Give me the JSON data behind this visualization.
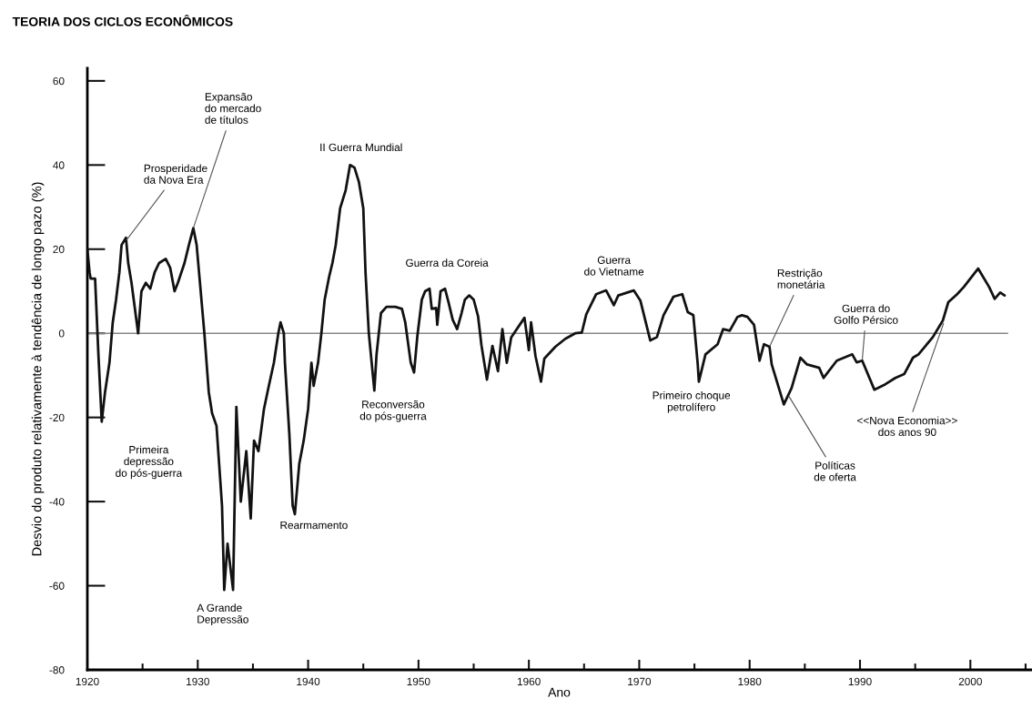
{
  "chart_data": {
    "type": "line",
    "title": "TEORIA DOS CICLOS ECONÔMICOS",
    "xlabel": "Ano",
    "ylabel": "Desvio do produto relativamente à tendência de longo pazo (%)",
    "series": [
      {
        "color": "#111111",
        "x": [
          1920.0,
          1920.2,
          1920.3,
          1920.7,
          1921.0,
          1921.3,
          1921.6,
          1922.0,
          1922.3,
          1922.6,
          1922.9,
          1923.1,
          1923.5,
          1923.7,
          1924.0,
          1924.6,
          1924.9,
          1925.3,
          1925.7,
          1926.1,
          1926.5,
          1927.1,
          1927.5,
          1927.9,
          1928.2,
          1928.8,
          1929.2,
          1929.6,
          1929.9,
          1930.2,
          1930.6,
          1931.0,
          1931.3,
          1931.7,
          1932.2,
          1932.4,
          1932.7,
          1933.2,
          1933.5,
          1933.9,
          1934.4,
          1934.8,
          1935.1,
          1935.5,
          1936.0,
          1936.4,
          1936.9,
          1937.3,
          1937.5,
          1937.8,
          1937.9,
          1938.3,
          1938.6,
          1938.8,
          1939.2,
          1939.6,
          1940.0,
          1940.3,
          1940.5,
          1940.9,
          1941.2,
          1941.5,
          1941.9,
          1942.2,
          1942.5,
          1942.9,
          1943.4,
          1943.8,
          1944.2,
          1944.6,
          1945.0,
          1945.2,
          1945.5,
          1946.0,
          1946.2,
          1946.6,
          1947.1,
          1947.9,
          1948.5,
          1948.8,
          1949.3,
          1949.6,
          1949.9,
          1950.3,
          1950.6,
          1951.0,
          1951.2,
          1951.6,
          1951.7,
          1952.0,
          1952.4,
          1952.7,
          1953.1,
          1953.5,
          1953.9,
          1954.2,
          1954.6,
          1955.0,
          1955.4,
          1955.7,
          1956.2,
          1956.7,
          1957.2,
          1957.6,
          1958.0,
          1958.4,
          1959.6,
          1960.0,
          1960.2,
          1960.6,
          1961.1,
          1961.4,
          1962.4,
          1963.3,
          1964.2,
          1964.8,
          1965.2,
          1966.1,
          1967.0,
          1967.7,
          1968.1,
          1969.5,
          1970.1,
          1971.0,
          1971.6,
          1972.2,
          1973.1,
          1973.9,
          1974.4,
          1974.9,
          1975.3,
          1975.4,
          1976.0,
          1977.1,
          1977.6,
          1978.2,
          1978.9,
          1979.3,
          1979.8,
          1980.4,
          1980.9,
          1981.3,
          1981.8,
          1982.0,
          1983.1,
          1983.8,
          1984.6,
          1985.2,
          1986.3,
          1986.7,
          1987.9,
          1989.3,
          1989.7,
          1990.2,
          1991.3,
          1992.3,
          1993.2,
          1994.0,
          1994.8,
          1995.3,
          1996.6,
          1997.5,
          1998.0,
          1998.8,
          1999.4,
          2000.7,
          2001.7,
          2002.2,
          2002.7,
          2003.1
        ],
        "values": [
          20,
          14.5,
          13,
          13,
          -5,
          -21,
          -14,
          -7,
          2.6,
          8,
          14.5,
          21,
          22.7,
          16.7,
          12,
          0,
          10,
          12,
          10.6,
          14.5,
          16.7,
          17.7,
          15.6,
          10,
          12,
          16.7,
          21,
          25,
          21,
          12,
          0,
          -14,
          -19,
          -22,
          -41,
          -61,
          -50,
          -61,
          -17.5,
          -40,
          -28,
          -44,
          -25.5,
          -28,
          -18,
          -13,
          -7,
          0,
          2.6,
          0,
          -7,
          -24,
          -41,
          -43,
          -31,
          -25.5,
          -18,
          -7,
          -12.5,
          -7,
          0,
          8,
          13.4,
          16.7,
          21,
          29.7,
          34,
          40,
          39.4,
          36,
          29.7,
          14.5,
          0,
          -13.6,
          -5,
          4.8,
          6.3,
          6.3,
          5.8,
          2.6,
          -7,
          -9.3,
          -0.6,
          8,
          10,
          10.6,
          5.8,
          6,
          2,
          10,
          10.6,
          7.6,
          3.2,
          1,
          4.8,
          8,
          9,
          8,
          4,
          -2.8,
          -11,
          -3,
          -9,
          1,
          -7,
          -1,
          3.7,
          -4,
          2.6,
          -5.4,
          -11.5,
          -6,
          -3.2,
          -1.3,
          0,
          0.2,
          4.5,
          9.3,
          10.2,
          6.7,
          9,
          10.2,
          7.8,
          -1.7,
          -0.9,
          4.3,
          8.7,
          9.3,
          5,
          4.3,
          -7.4,
          -11.5,
          -5,
          -2.6,
          1,
          0.6,
          3.9,
          4.3,
          3.9,
          2,
          -6.5,
          -2.6,
          -3.2,
          -7.4,
          -16.9,
          -13,
          -5.8,
          -7.4,
          -8.2,
          -10.6,
          -6.5,
          -5,
          -6.9,
          -6.5,
          -13.4,
          -12.1,
          -10.6,
          -9.7,
          -5.8,
          -5,
          -0.9,
          3,
          7.4,
          9.3,
          11,
          15.4,
          11,
          8.2,
          9.7,
          9
        ]
      }
    ],
    "xlim": [
      1920,
      2005.5
    ],
    "ylim": [
      -80,
      63
    ],
    "xticks": [
      1920,
      {
        "value": 1925,
        "label": null
      },
      1930,
      {
        "value": 1935,
        "label": null
      },
      1940,
      {
        "value": 1945,
        "label": null
      },
      1950,
      {
        "value": 1955,
        "label": null
      },
      1960,
      {
        "value": 1965,
        "label": null
      },
      1970,
      {
        "value": 1975,
        "label": null
      },
      1980,
      {
        "value": 1985,
        "label": null
      },
      1990,
      {
        "value": 1995,
        "label": null
      },
      2000,
      {
        "value": 2005,
        "label": null
      }
    ],
    "yticks": [
      -80,
      -60,
      -40,
      -20,
      0,
      20,
      40,
      60
    ],
    "ref_lines": [
      {
        "axis": "y",
        "value": 0,
        "color": "#888888"
      }
    ],
    "grid": false,
    "legend": false,
    "marker": "none",
    "line_style": "solid",
    "annotations": [
      {
        "text": "Prosperidade\nda Nova Era",
        "x": 1923.5,
        "y": 22
      },
      {
        "text": "Expansão\ndo mercado\nde títulos",
        "x": 1929.6,
        "y": 25
      },
      "II Guerra Mundial",
      "Guerra da Coreia",
      "Guerra\ndo Vietname",
      {
        "text": "Restrição\nmonetária",
        "x": 1981.8,
        "y": -3.2
      },
      {
        "text": "Guerra do\nGolfo Pérsico",
        "x": 1990.2,
        "y": -6.5
      },
      "Primeira\ndepressão\ndo pós-guerra",
      "Reconversão\ndo pós-guerra",
      "A Grande\nDepressão",
      "Rearmamento",
      "Primeiro choque\npetrolífero",
      {
        "text": "Políticas\nde oferta",
        "x": 1983.5,
        "y": -14.7
      },
      {
        "text": "<<Nova Economia>>\ndos anos 90",
        "x": 1997.6,
        "y": 2.6
      }
    ]
  }
}
